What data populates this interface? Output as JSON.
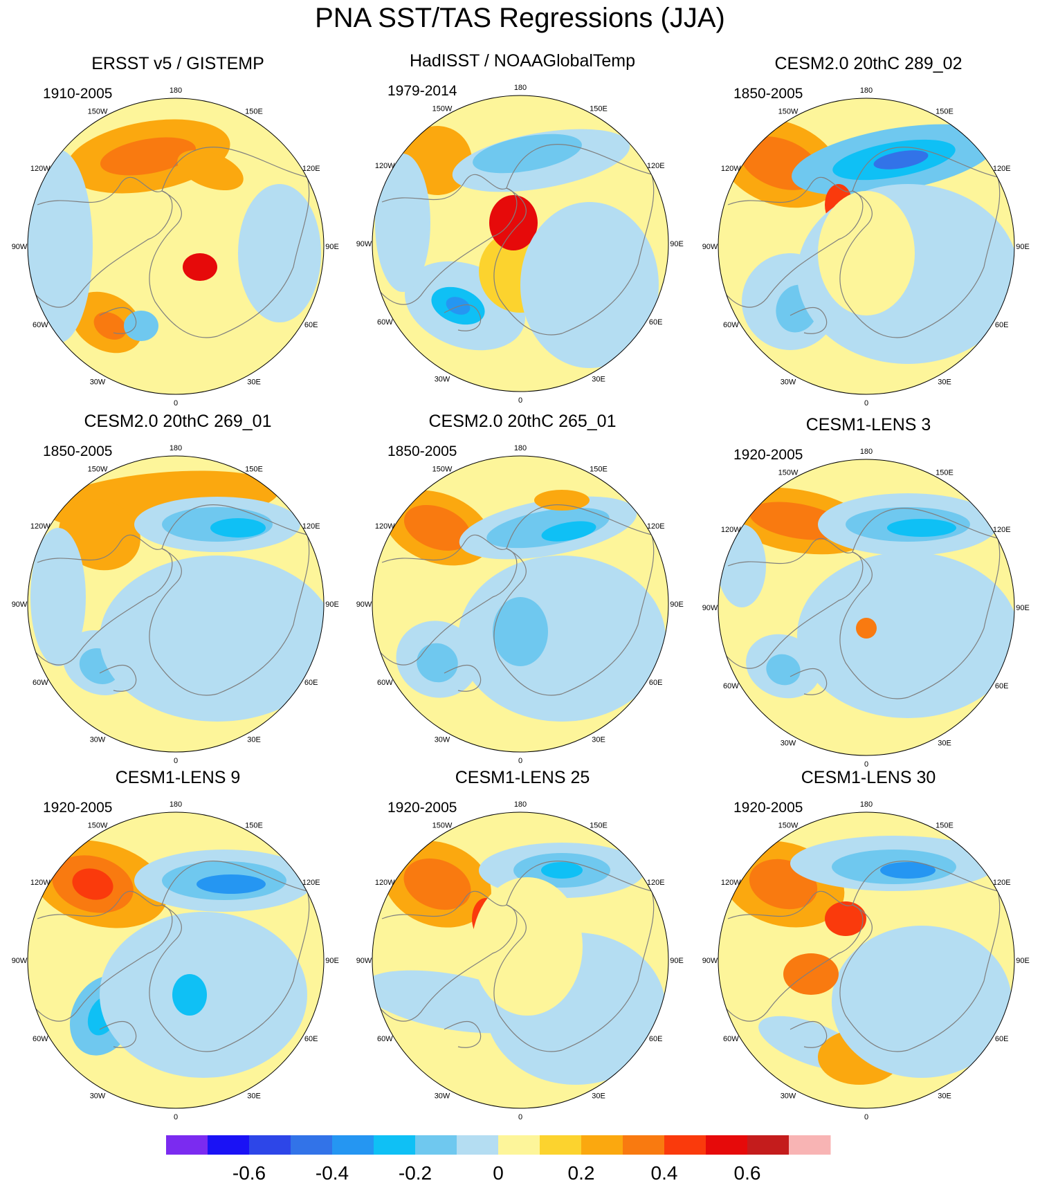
{
  "title": "PNA SST/TAS Regressions (JJA)",
  "panels": [
    {
      "title": "ERSST v5 / GISTEMP",
      "period": "1910-2005"
    },
    {
      "title": "HadISST / NOAAGlobalTemp",
      "period": "1979-2014"
    },
    {
      "title": "CESM2.0 20thC 289_02",
      "period": "1850-2005"
    },
    {
      "title": "CESM2.0 20thC 269_01",
      "period": "1850-2005"
    },
    {
      "title": "CESM2.0 20thC 265_01",
      "period": "1850-2005"
    },
    {
      "title": "CESM1-LENS 3",
      "period": "1920-2005"
    },
    {
      "title": "CESM1-LENS 9",
      "period": "1920-2005"
    },
    {
      "title": "CESM1-LENS 25",
      "period": "1920-2005"
    },
    {
      "title": "CESM1-LENS 30",
      "period": "1920-2005"
    }
  ],
  "longitude_labels": [
    "180",
    "150E",
    "120E",
    "90E",
    "60E",
    "30E",
    "0",
    "30W",
    "60W",
    "90W",
    "120W",
    "150W"
  ],
  "colorbar": {
    "colors": [
      "#7b2bf0",
      "#1a12f5",
      "#2d46e8",
      "#3273e8",
      "#2596f2",
      "#0fc0f5",
      "#6fc8ef",
      "#b4ddf2",
      "#fdf59a",
      "#fcd32e",
      "#fba80f",
      "#f97a10",
      "#fa3a0c",
      "#e60a0a",
      "#c41c1c",
      "#f8b4b4"
    ],
    "tick_labels": [
      "-0.6",
      "-0.4",
      "-0.2",
      "0",
      "0.2",
      "0.4",
      "0.6"
    ]
  },
  "colors": {
    "land_outline": "#7f7f7f",
    "coast_outline": "#ffffff",
    "background": "#fdf59a"
  }
}
